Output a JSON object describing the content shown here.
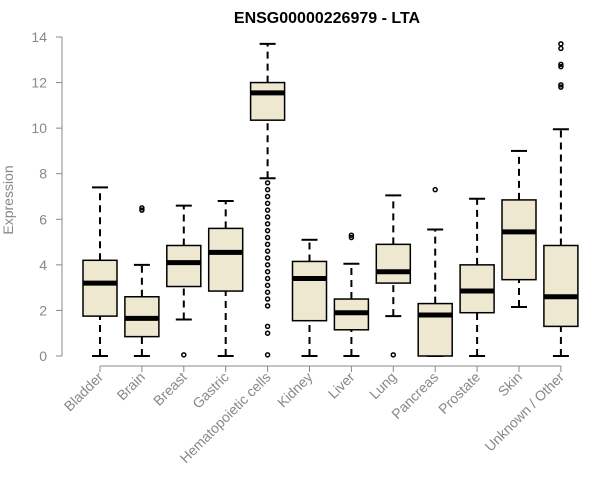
{
  "chart_data": {
    "type": "box",
    "title": "ENSG00000226979 - LTA",
    "ylabel": "Expression",
    "xlabel": "",
    "ylim": [
      0,
      14
    ],
    "yticks": [
      0,
      2,
      4,
      6,
      8,
      10,
      12,
      14
    ],
    "grid": false,
    "legend": "none",
    "box_fill": "#efe8d0",
    "categories": [
      "Bladder",
      "Brain",
      "Breast",
      "Gastric",
      "Hematopoietic cells",
      "Kidney",
      "Liver",
      "Lung",
      "Pancreas",
      "Prostate",
      "Skin",
      "Unknown / Other"
    ],
    "boxes": [
      {
        "category": "Bladder",
        "whisker_low": 0,
        "q1": 1.75,
        "median": 3.2,
        "q3": 4.2,
        "whisker_high": 7.4,
        "outliers": []
      },
      {
        "category": "Brain",
        "whisker_low": 0,
        "q1": 0.85,
        "median": 1.65,
        "q3": 2.6,
        "whisker_high": 4.0,
        "outliers": [
          6.4,
          6.5
        ]
      },
      {
        "category": "Breast",
        "whisker_low": 1.6,
        "q1": 3.05,
        "median": 4.1,
        "q3": 4.85,
        "whisker_high": 6.6,
        "outliers": [
          0.05
        ]
      },
      {
        "category": "Gastric",
        "whisker_low": 0,
        "q1": 2.85,
        "median": 4.55,
        "q3": 5.6,
        "whisker_high": 6.8,
        "outliers": []
      },
      {
        "category": "Hematopoietic cells",
        "whisker_low": 7.8,
        "q1": 10.35,
        "median": 11.55,
        "q3": 12.0,
        "whisker_high": 13.7,
        "outliers": [
          0.05,
          1.0,
          1.3,
          2.2,
          2.5,
          2.8,
          3.1,
          3.4,
          3.7,
          4.0,
          4.3,
          4.6,
          4.9,
          5.2,
          5.5,
          5.8,
          6.1,
          6.4,
          6.7,
          7.0,
          7.3,
          7.6
        ]
      },
      {
        "category": "Kidney",
        "whisker_low": 0,
        "q1": 1.55,
        "median": 3.4,
        "q3": 4.15,
        "whisker_high": 5.1,
        "outliers": []
      },
      {
        "category": "Liver",
        "whisker_low": 0,
        "q1": 1.15,
        "median": 1.9,
        "q3": 2.5,
        "whisker_high": 4.05,
        "outliers": [
          5.2,
          5.3
        ]
      },
      {
        "category": "Lung",
        "whisker_low": 1.75,
        "q1": 3.2,
        "median": 3.7,
        "q3": 4.9,
        "whisker_high": 7.05,
        "outliers": [
          0.05
        ]
      },
      {
        "category": "Pancreas",
        "whisker_low": 0,
        "q1": 0,
        "median": 1.8,
        "q3": 2.3,
        "whisker_high": 5.55,
        "outliers": [
          7.3
        ]
      },
      {
        "category": "Prostate",
        "whisker_low": 0,
        "q1": 1.9,
        "median": 2.85,
        "q3": 4.0,
        "whisker_high": 6.9,
        "outliers": []
      },
      {
        "category": "Skin",
        "whisker_low": 2.15,
        "q1": 3.35,
        "median": 5.45,
        "q3": 6.85,
        "whisker_high": 9.0,
        "outliers": []
      },
      {
        "category": "Unknown / Other",
        "whisker_low": 0,
        "q1": 1.3,
        "median": 2.6,
        "q3": 4.85,
        "whisker_high": 9.95,
        "outliers": [
          11.8,
          11.9,
          12.7,
          12.8,
          13.5,
          13.7
        ]
      }
    ]
  }
}
